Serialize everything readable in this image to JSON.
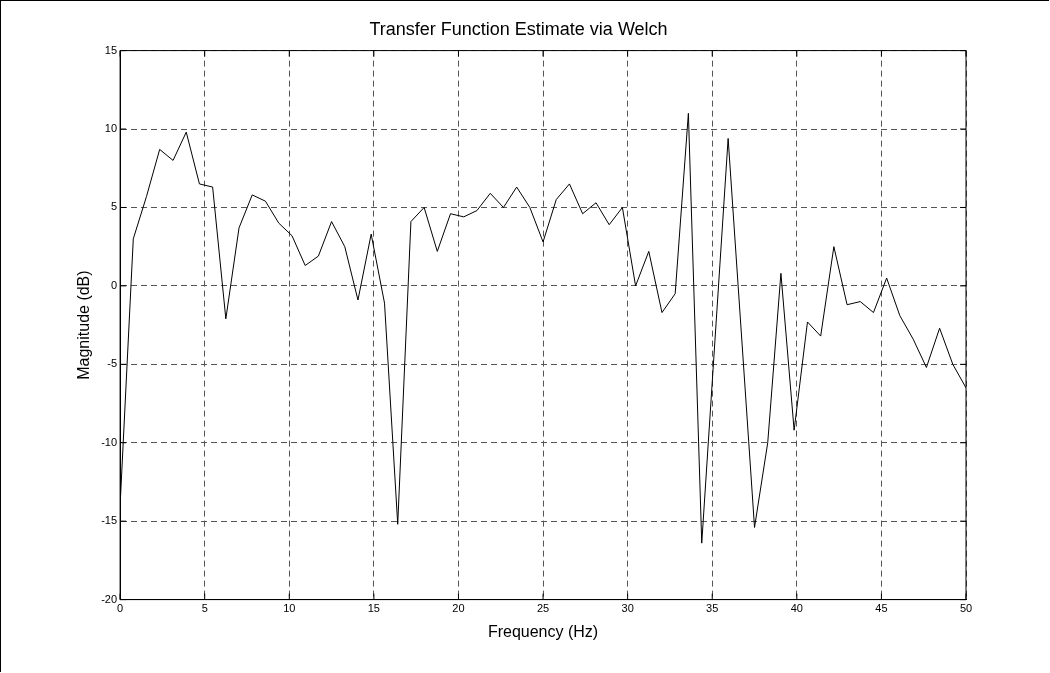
{
  "chart_data": {
    "type": "line",
    "title": "Transfer Function Estimate via Welch",
    "xlabel": "Frequency (Hz)",
    "ylabel": "Magnitude (dB)",
    "x": [
      0,
      0.78,
      1.56,
      2.34,
      3.13,
      3.91,
      4.69,
      5.47,
      6.25,
      7.03,
      7.81,
      8.59,
      9.38,
      10.16,
      10.94,
      11.72,
      12.5,
      13.28,
      14.06,
      14.84,
      15.63,
      16.41,
      17.19,
      17.97,
      18.75,
      19.53,
      20.31,
      21.09,
      21.88,
      22.66,
      23.44,
      24.22,
      25,
      25.78,
      26.56,
      27.34,
      28.13,
      28.91,
      29.69,
      30.47,
      31.25,
      32.03,
      32.81,
      33.59,
      34.38,
      35.16,
      35.94,
      36.72,
      37.5,
      38.28,
      39.06,
      39.84,
      40.63,
      41.41,
      42.19,
      42.97,
      43.75,
      44.53,
      45.31,
      46.09,
      46.88,
      47.66,
      48.44,
      49.22,
      50
    ],
    "series": [
      {
        "color": "#000000",
        "values": [
          -14,
          3,
          5.7,
          8.7,
          8,
          9.8,
          6.5,
          6.3,
          -2.1,
          3.7,
          5.8,
          5.4,
          4,
          3.2,
          1.3,
          1.9,
          4.1,
          2.5,
          -0.9,
          3.3,
          -1.1,
          -15.2,
          4.1,
          5,
          2.2,
          4.6,
          4.4,
          4.8,
          5.9,
          5,
          6.3,
          5,
          2.8,
          5.5,
          6.5,
          4.6,
          5.3,
          3.9,
          5,
          0,
          2.2,
          -1.7,
          -0.5,
          11,
          -16.4,
          -3.5,
          9.4,
          -3,
          -15.4,
          -10,
          0.8,
          -9.2,
          -2.3,
          -3.2,
          2.5,
          -1.2,
          -1,
          -1.7,
          0.5,
          -1.9,
          -3.4,
          -5.2,
          -2.7,
          -5,
          -6.5
        ]
      }
    ],
    "xlim": [
      0,
      50
    ],
    "xticks": [
      0,
      5,
      10,
      15,
      20,
      25,
      30,
      35,
      40,
      45,
      50
    ],
    "ylim": [
      -20,
      15
    ],
    "yticks": [
      -20,
      -15,
      -10,
      -5,
      0,
      5,
      10,
      15
    ],
    "grid": true,
    "line_style": "solid",
    "marker": "none"
  }
}
